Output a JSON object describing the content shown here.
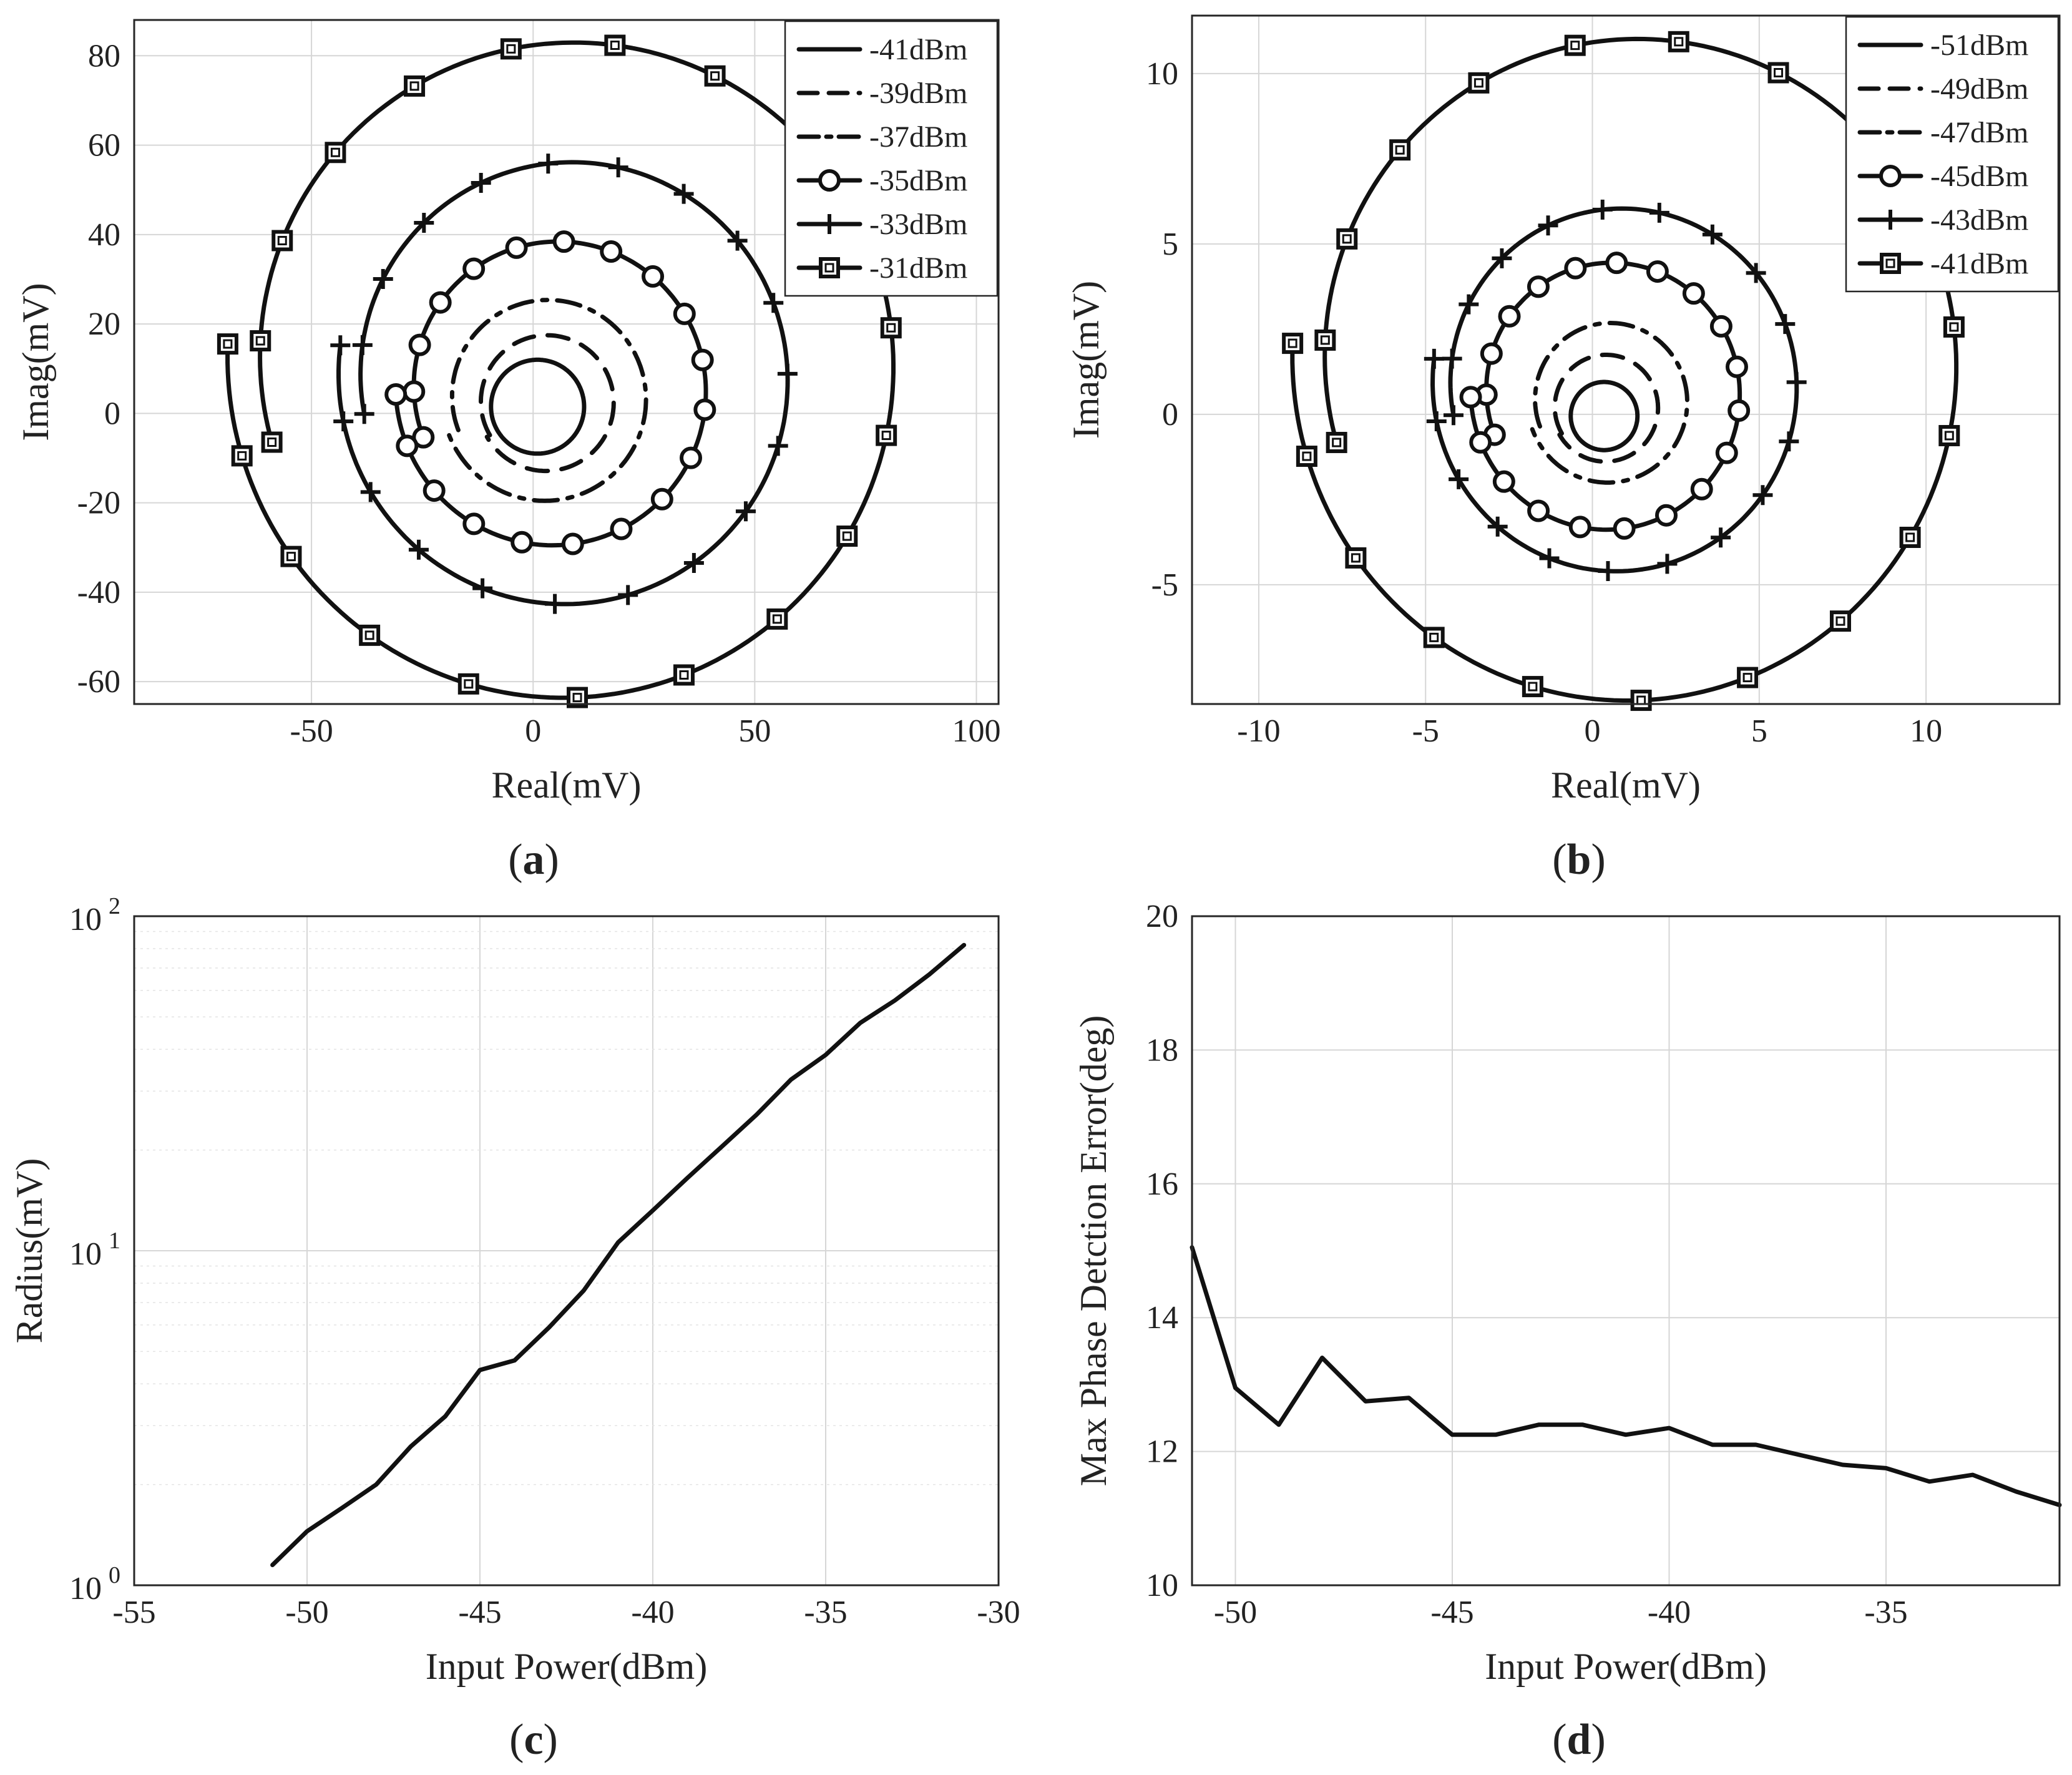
{
  "chart_data": [
    {
      "id": "a",
      "type": "line",
      "panel_label": "a",
      "xlabel": "Real(mV)",
      "ylabel": "Imag(mV)",
      "xlim": [
        -90,
        105
      ],
      "ylim": [
        -65,
        88
      ],
      "xticks": [
        -50,
        0,
        50,
        100
      ],
      "yticks": [
        -60,
        -40,
        -20,
        0,
        20,
        40,
        60,
        80
      ],
      "grid": true,
      "legend_position": "top-right",
      "series": [
        {
          "name": "-41dBm",
          "style": "solid",
          "marker": "none",
          "center": [
            1,
            1.5
          ],
          "radius": 10.5,
          "start_angle_deg": 180,
          "turns": 1.0,
          "radius_growth": 0,
          "marker_count": 0
        },
        {
          "name": "-39dBm",
          "style": "dashed",
          "marker": "none",
          "center": [
            3,
            2.5
          ],
          "radius": 15.5,
          "start_angle_deg": 210,
          "turns": 1.0,
          "radius_growth": 0.05,
          "marker_count": 0
        },
        {
          "name": "-37dBm",
          "style": "dashdot",
          "marker": "none",
          "center": [
            3,
            3.5
          ],
          "radius": 23.5,
          "start_angle_deg": 200,
          "turns": 1.0,
          "radius_growth": 0.1,
          "marker_count": 0
        },
        {
          "name": "-35dBm",
          "style": "solid",
          "marker": "circle",
          "center": [
            5,
            5.5
          ],
          "radius": 36,
          "start_angle_deg": 200,
          "turns": 1.05,
          "radius_growth": 0.12,
          "marker_count": 21
        },
        {
          "name": "-33dBm",
          "style": "solid",
          "marker": "plus",
          "center": [
            8,
            8
          ],
          "radius": 52,
          "start_angle_deg": 190,
          "turns": 1.05,
          "radius_growth": 0.1,
          "marker_count": 21
        },
        {
          "name": "-31dBm",
          "style": "solid",
          "marker": "square",
          "center": [
            8,
            11.5
          ],
          "radius": 77,
          "start_angle_deg": 195,
          "turns": 1.05,
          "radius_growth": 0.1,
          "marker_count": 21
        }
      ]
    },
    {
      "id": "b",
      "type": "line",
      "panel_label": "b",
      "xlabel": "Real(mV)",
      "ylabel": "Imag(mV)",
      "xlim": [
        -12,
        14
      ],
      "ylim": [
        -8.5,
        11.7
      ],
      "xticks": [
        -10,
        -5,
        0,
        5,
        10
      ],
      "yticks": [
        -5,
        0,
        5,
        10
      ],
      "grid": true,
      "legend_position": "top-right",
      "series": [
        {
          "name": "-51dBm",
          "style": "solid",
          "marker": "none",
          "center": [
            0.35,
            -0.05
          ],
          "radius": 1.0,
          "start_angle_deg": 180,
          "turns": 1.0,
          "radius_growth": 0,
          "marker_count": 0
        },
        {
          "name": "-49dBm",
          "style": "dashed",
          "marker": "none",
          "center": [
            0.4,
            0.2
          ],
          "radius": 1.6,
          "start_angle_deg": 210,
          "turns": 1.0,
          "radius_growth": 0.05,
          "marker_count": 0
        },
        {
          "name": "-47dBm",
          "style": "dashdot",
          "marker": "none",
          "center": [
            0.5,
            0.4
          ],
          "radius": 2.45,
          "start_angle_deg": 200,
          "turns": 1.0,
          "radius_growth": 0.1,
          "marker_count": 0
        },
        {
          "name": "-45dBm",
          "style": "solid",
          "marker": "circle",
          "center": [
            0.5,
            0.65
          ],
          "radius": 4.15,
          "start_angle_deg": 200,
          "turns": 1.05,
          "radius_growth": 0.12,
          "marker_count": 21
        },
        {
          "name": "-43dBm",
          "style": "solid",
          "marker": "plus",
          "center": [
            0.8,
            0.85
          ],
          "radius": 5.6,
          "start_angle_deg": 190,
          "turns": 1.05,
          "radius_growth": 0.1,
          "marker_count": 21
        },
        {
          "name": "-41dBm",
          "style": "solid",
          "marker": "square",
          "center": [
            1.2,
            1.55
          ],
          "radius": 10.2,
          "start_angle_deg": 195,
          "turns": 1.05,
          "radius_growth": 0.1,
          "marker_count": 21
        }
      ]
    },
    {
      "id": "c",
      "type": "line",
      "panel_label": "c",
      "xlabel": "Input Power(dBm)",
      "ylabel": "Radius(mV)",
      "yscale": "log",
      "xlim": [
        -55,
        -30
      ],
      "ylim": [
        1,
        100
      ],
      "xticks": [
        -55,
        -50,
        -45,
        -40,
        -35,
        -30
      ],
      "ytick_labels": [
        {
          "base": "10",
          "exp": "0",
          "value": 1
        },
        {
          "base": "10",
          "exp": "1",
          "value": 10
        },
        {
          "base": "10",
          "exp": "2",
          "value": 100
        }
      ],
      "grid": true,
      "series": [
        {
          "name": "Radius",
          "x": [
            -51,
            -50,
            -49,
            -48,
            -47,
            -46,
            -45,
            -44,
            -43,
            -42,
            -41,
            -40,
            -39,
            -38,
            -37,
            -36,
            -35,
            -34,
            -33,
            -32,
            -31
          ],
          "y": [
            1.15,
            1.45,
            1.7,
            2.0,
            2.6,
            3.2,
            4.4,
            4.7,
            5.9,
            7.6,
            10.6,
            13.2,
            16.5,
            20.5,
            25.5,
            32.5,
            38.5,
            48,
            56,
            67,
            82
          ]
        }
      ]
    },
    {
      "id": "d",
      "type": "line",
      "panel_label": "d",
      "xlabel": "Input Power(dBm)",
      "ylabel": "Max Phase Detction Error(deg)",
      "xlim": [
        -51,
        -31
      ],
      "ylim": [
        10,
        20
      ],
      "xticks": [
        -50,
        -45,
        -40,
        -35
      ],
      "yticks": [
        10,
        12,
        14,
        16,
        18,
        20
      ],
      "grid": true,
      "series": [
        {
          "name": "Max Phase Detection Error",
          "x": [
            -51,
            -50,
            -49,
            -48,
            -47,
            -46,
            -45,
            -44,
            -43,
            -42,
            -41,
            -40,
            -39,
            -38,
            -37,
            -36,
            -35,
            -34,
            -33,
            -32,
            -31
          ],
          "y": [
            15.05,
            12.95,
            12.4,
            13.4,
            12.75,
            12.8,
            12.25,
            12.25,
            12.4,
            12.4,
            12.25,
            12.35,
            12.1,
            12.1,
            11.95,
            11.8,
            11.75,
            11.55,
            11.65,
            11.4,
            11.2
          ]
        }
      ]
    }
  ]
}
